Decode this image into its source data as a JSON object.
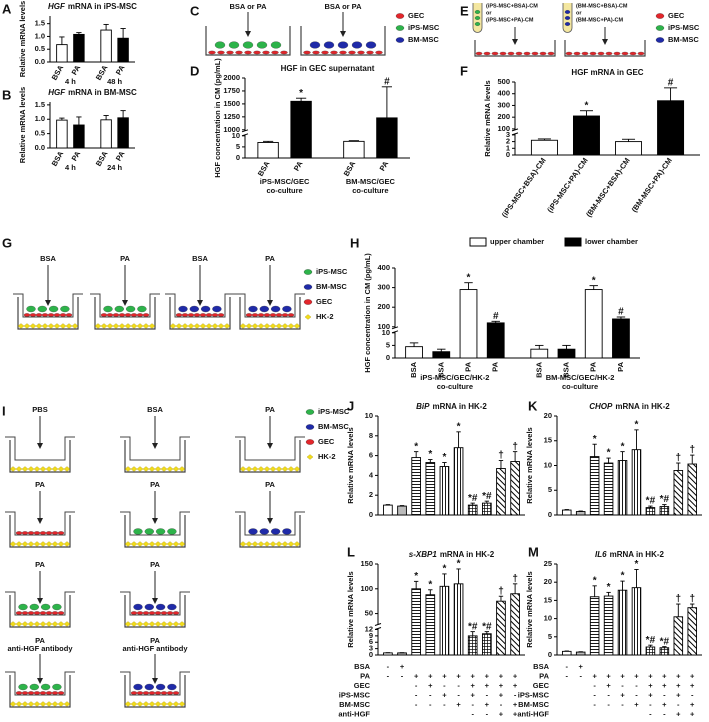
{
  "chart_data": [
    {
      "panel": "A",
      "type": "bar",
      "title_gene": "HGF",
      "title": "mRNA in iPS-MSC",
      "ylabel": "Relative mRNA levels",
      "ylim": [
        0,
        1.8
      ],
      "yticks": [
        {
          "value": 0,
          "label": "0.0"
        },
        0.5,
        {
          "value": 1,
          "label": "1.0"
        },
        1.5
      ],
      "categories": [
        "BSA",
        "PA",
        "BSA",
        "PA"
      ],
      "groups": [
        [
          "4 h"
        ],
        [
          "48 h"
        ]
      ],
      "values": [
        0.68,
        1.08,
        1.25,
        0.93
      ],
      "errors": [
        0.3,
        0.07,
        0.22,
        0.38
      ],
      "fills": [
        "#ffffff",
        "#000000",
        "#ffffff",
        "#000000"
      ]
    },
    {
      "panel": "B",
      "type": "bar",
      "title_gene": "HGF",
      "title": "mRNA in BM-MSC",
      "ylabel": "Relative mRNA levels",
      "ylim": [
        0,
        1.6
      ],
      "yticks": [
        {
          "value": 0,
          "label": "0.0"
        },
        0.5,
        {
          "value": 1,
          "label": "1.0"
        },
        1.5
      ],
      "categories": [
        "BSA",
        "PA",
        "BSA",
        "PA"
      ],
      "groups": [
        [
          "4 h"
        ],
        [
          "24 h"
        ]
      ],
      "values": [
        0.97,
        0.8,
        0.98,
        1.05
      ],
      "errors": [
        0.07,
        0.28,
        0.15,
        0.25
      ],
      "fills": [
        "#ffffff",
        "#000000",
        "#ffffff",
        "#000000"
      ]
    },
    {
      "panel": "D",
      "type": "bar",
      "title": "HGF in GEC supernatant",
      "ylabel": "HGF concentration in CM (pg/mL)",
      "ylim": [
        0,
        2000
      ],
      "ybreak": [
        10,
        1000
      ],
      "yticks": [
        0,
        5,
        10,
        1000,
        1250,
        1500,
        1750,
        2000
      ],
      "categories": [
        "BSA",
        "PA",
        "BSA",
        "PA"
      ],
      "groups": [
        [
          "iPS-MSC/GEC",
          "co-culture"
        ],
        [
          "BM-MSC/GEC",
          "co-culture"
        ]
      ],
      "values": [
        7,
        1550,
        7.5,
        1230
      ],
      "errors": [
        0.5,
        60,
        0.3,
        600
      ],
      "annotations": [
        null,
        "*",
        null,
        "#"
      ],
      "fills": [
        "#ffffff",
        "#000000",
        "#ffffff",
        "#000000"
      ]
    },
    {
      "panel": "F",
      "type": "bar",
      "title": "HGF mRNA in GEC",
      "ylabel": "Relative mRNA levels",
      "ylim": [
        0,
        500
      ],
      "ybreak": [
        3,
        100
      ],
      "yticks": [
        0,
        1,
        2,
        3,
        100,
        200,
        300,
        400,
        500
      ],
      "categories": [
        "(iPS-MSC+BSA)-CM",
        "(iPS-MSC+PA)-CM",
        "(BM-MSC+BSA)-CM",
        "(BM-MSC+PA)-CM"
      ],
      "values": [
        2.2,
        210,
        2.0,
        340
      ],
      "errors": [
        0.2,
        45,
        0.35,
        110
      ],
      "annotations": [
        null,
        "*",
        null,
        "#"
      ],
      "fills": [
        "#ffffff",
        "#000000",
        "#ffffff",
        "#000000"
      ]
    },
    {
      "panel": "H",
      "type": "bar",
      "ylabel": "HGF concentration in CM (pg/mL)",
      "ylim": [
        0,
        400
      ],
      "ybreak": [
        10,
        100
      ],
      "yticks": [
        0,
        5,
        10,
        100,
        200,
        300,
        400
      ],
      "categories": [
        "BSA",
        "BSA",
        "PA",
        "PA",
        "BSA",
        "BSA",
        "PA",
        "PA"
      ],
      "groups": [
        [
          "iPS-MSC/GEC/HK-2",
          "co-culture"
        ],
        [
          "BM-MSC/GEC/HK-2",
          "co-culture"
        ]
      ],
      "values": [
        4.5,
        2.5,
        290,
        120,
        3.5,
        3.5,
        290,
        140
      ],
      "errors": [
        1.5,
        1,
        35,
        8,
        1.5,
        1.5,
        20,
        10
      ],
      "annotations": [
        null,
        null,
        "*",
        "#",
        null,
        null,
        "*",
        "#"
      ],
      "fills": [
        "#ffffff",
        "#000000",
        "#ffffff",
        "#000000",
        "#ffffff",
        "#000000",
        "#ffffff",
        "#000000"
      ],
      "legend": [
        {
          "name": "upper chamber",
          "color": "#ffffff"
        },
        {
          "name": "lower chamber",
          "color": "#000000"
        }
      ]
    },
    {
      "panel": "J",
      "type": "bar",
      "title_gene": "BiP",
      "title": "mRNA in HK-2",
      "ylabel": "Relative mRNA levels",
      "ylim": [
        0,
        10
      ],
      "yticks": [
        0,
        2,
        4,
        6,
        8,
        10
      ],
      "values": [
        1.0,
        0.9,
        5.8,
        5.3,
        4.9,
        6.8,
        1.0,
        1.2,
        4.7,
        5.4
      ],
      "errors": [
        0.05,
        0.05,
        0.6,
        0.3,
        0.4,
        1.6,
        0.2,
        0.2,
        0.8,
        1.0
      ],
      "annotations": [
        null,
        null,
        "*",
        "*",
        "*",
        "*",
        "*#",
        "*#",
        "†",
        "†"
      ],
      "fills": [
        "#ffffff",
        "#bbbbbb",
        "hline",
        "hline",
        "vline",
        "vline",
        "cross",
        "cross",
        "diag",
        "diag"
      ]
    },
    {
      "panel": "K",
      "type": "bar",
      "title_gene": "CHOP",
      "title": "mRNA in HK-2",
      "ylabel": "Relative mRNA levels",
      "ylim": [
        0,
        20
      ],
      "yticks": [
        0,
        5,
        10,
        15,
        20
      ],
      "values": [
        1.0,
        0.7,
        11.8,
        10.5,
        11,
        13.2,
        1.5,
        1.7,
        9,
        10.3
      ],
      "errors": [
        0.1,
        0.1,
        2.5,
        1,
        1.8,
        4,
        0.3,
        0.4,
        1.5,
        1.8
      ],
      "annotations": [
        null,
        null,
        "*",
        "*",
        "*",
        "*",
        "*#",
        "*#",
        "†",
        "†"
      ],
      "fills": [
        "#ffffff",
        "#bbbbbb",
        "hline",
        "hline",
        "vline",
        "vline",
        "cross",
        "cross",
        "diag",
        "diag"
      ]
    },
    {
      "panel": "L",
      "type": "bar",
      "title_gene": "s-XBP1",
      "title": "mRNA in HK-2",
      "ylabel": "Relative mRNA levels",
      "ylim": [
        0,
        150
      ],
      "ybreak": [
        12,
        30
      ],
      "yticks": [
        0,
        3,
        6,
        9,
        12,
        50,
        100,
        150
      ],
      "values": [
        1,
        1,
        100,
        88,
        105,
        110,
        9,
        10,
        75,
        90
      ],
      "errors": [
        0.1,
        0.1,
        15,
        10,
        25,
        30,
        2,
        1,
        10,
        20
      ],
      "annotations": [
        null,
        null,
        "*",
        "*",
        "*",
        "*",
        "*#",
        "*#",
        "†",
        "†"
      ],
      "fills": [
        "#ffffff",
        "#bbbbbb",
        "hline",
        "hline",
        "vline",
        "vline",
        "cross",
        "cross",
        "diag",
        "diag"
      ],
      "conditions": [
        {
          "name": "BSA",
          "signs": [
            "-",
            "+",
            null,
            null,
            null,
            null,
            null,
            null,
            null,
            null
          ]
        },
        {
          "name": "PA",
          "signs": [
            "-",
            "-",
            "+",
            "+",
            "+",
            "+",
            "+",
            "+",
            "+",
            "+"
          ]
        },
        {
          "name": "GEC",
          "signs": [
            null,
            null,
            "-",
            "+",
            "-",
            "-",
            "+",
            "+",
            "+",
            "+"
          ]
        },
        {
          "name": "iPS-MSC",
          "signs": [
            null,
            null,
            "-",
            "-",
            "+",
            "-",
            "+",
            "-",
            "+",
            "-"
          ]
        },
        {
          "name": "BM-MSC",
          "signs": [
            null,
            null,
            "-",
            "-",
            "-",
            "+",
            "-",
            "+",
            "-",
            "+"
          ]
        },
        {
          "name": "anti-HGF",
          "signs": [
            null,
            null,
            null,
            null,
            null,
            null,
            "-",
            "-",
            "+",
            "+"
          ]
        }
      ]
    },
    {
      "panel": "M",
      "type": "bar",
      "title_gene": "IL6",
      "title": "mRNA in HK-2",
      "ylabel": "Relative mRNA levels",
      "ylim": [
        0,
        25
      ],
      "yticks": [
        0,
        5,
        10,
        15,
        20,
        25
      ],
      "values": [
        1,
        0.8,
        16,
        16.2,
        17.8,
        18.5,
        2.2,
        2,
        10.5,
        13
      ],
      "errors": [
        0.1,
        0.1,
        3,
        1,
        2.5,
        5,
        0.5,
        0.3,
        3.5,
        1
      ],
      "annotations": [
        null,
        null,
        "*",
        "*",
        "*",
        "*",
        "*#",
        "*#",
        "†",
        "†"
      ],
      "fills": [
        "#ffffff",
        "#bbbbbb",
        "hline",
        "hline",
        "vline",
        "vline",
        "cross",
        "cross",
        "diag",
        "diag"
      ],
      "conditions": [
        {
          "name": "BSA",
          "signs": [
            "-",
            "+",
            null,
            null,
            null,
            null,
            null,
            null,
            null,
            null
          ]
        },
        {
          "name": "PA",
          "signs": [
            "-",
            "-",
            "+",
            "+",
            "+",
            "+",
            "+",
            "+",
            "+",
            "+"
          ]
        },
        {
          "name": "GEC",
          "signs": [
            null,
            null,
            "-",
            "+",
            "-",
            "-",
            "+",
            "+",
            "+",
            "+"
          ]
        },
        {
          "name": "iPS-MSC",
          "signs": [
            null,
            null,
            "-",
            "-",
            "+",
            "-",
            "+",
            "-",
            "+",
            "-"
          ]
        },
        {
          "name": "BM-MSC",
          "signs": [
            null,
            null,
            "-",
            "-",
            "-",
            "+",
            "-",
            "+",
            "-",
            "+"
          ]
        },
        {
          "name": "anti-HGF",
          "signs": [
            null,
            null,
            null,
            null,
            null,
            null,
            "-",
            "-",
            "+",
            "+"
          ]
        }
      ]
    }
  ],
  "diagrams": [
    {
      "panel": "C",
      "labels": [
        "BSA or PA",
        "BSA or PA"
      ],
      "legend": [
        {
          "name": "GEC",
          "color": "#e3262b",
          "marker": "ellipse"
        },
        {
          "name": "iPS-MSC",
          "color": "#2db34a",
          "marker": "ellipse"
        },
        {
          "name": "BM-MSC",
          "color": "#1f2aa8",
          "marker": "ellipse"
        }
      ]
    },
    {
      "panel": "E",
      "tubes": [
        [
          "(iPS-MSC+BSA)-CM",
          "or",
          "(iPS-MSC+PA)-CM"
        ],
        [
          "(BM-MSC+BSA)-CM",
          "or",
          "(BM-MSC+PA)-CM"
        ]
      ],
      "legend": [
        {
          "name": "GEC",
          "color": "#e3262b",
          "marker": "ellipse"
        },
        {
          "name": "iPS-MSC",
          "color": "#2db34a",
          "marker": "ellipse"
        },
        {
          "name": "BM-MSC",
          "color": "#1f2aa8",
          "marker": "ellipse"
        }
      ]
    },
    {
      "panel": "G",
      "labels": [
        "BSA",
        "PA",
        "BSA",
        "PA"
      ],
      "legend": [
        {
          "name": "iPS-MSC",
          "color": "#2db34a",
          "marker": "ellipse"
        },
        {
          "name": "BM-MSC",
          "color": "#1f2aa8",
          "marker": "ellipse"
        },
        {
          "name": "GEC",
          "color": "#e3262b",
          "marker": "ellipse"
        },
        {
          "name": "HK-2",
          "color": "#f2dc1c",
          "marker": "diamond"
        }
      ]
    },
    {
      "panel": "I",
      "wells": [
        [
          "PBS"
        ],
        [
          "BSA"
        ],
        [
          "PA"
        ],
        [
          "PA"
        ],
        [
          "PA"
        ],
        [
          "PA"
        ],
        [
          "PA"
        ],
        [
          "PA"
        ],
        [
          "PA",
          "anti-HGF antibody"
        ],
        [
          "PA",
          "anti-HGF antibody"
        ]
      ],
      "legend": [
        {
          "name": "iPS-MSC",
          "color": "#2db34a",
          "marker": "ellipse"
        },
        {
          "name": "BM-MSC",
          "color": "#1f2aa8",
          "marker": "ellipse"
        },
        {
          "name": "GEC",
          "color": "#e3262b",
          "marker": "ellipse"
        },
        {
          "name": "HK-2",
          "color": "#f2dc1c",
          "marker": "diamond"
        }
      ]
    }
  ]
}
